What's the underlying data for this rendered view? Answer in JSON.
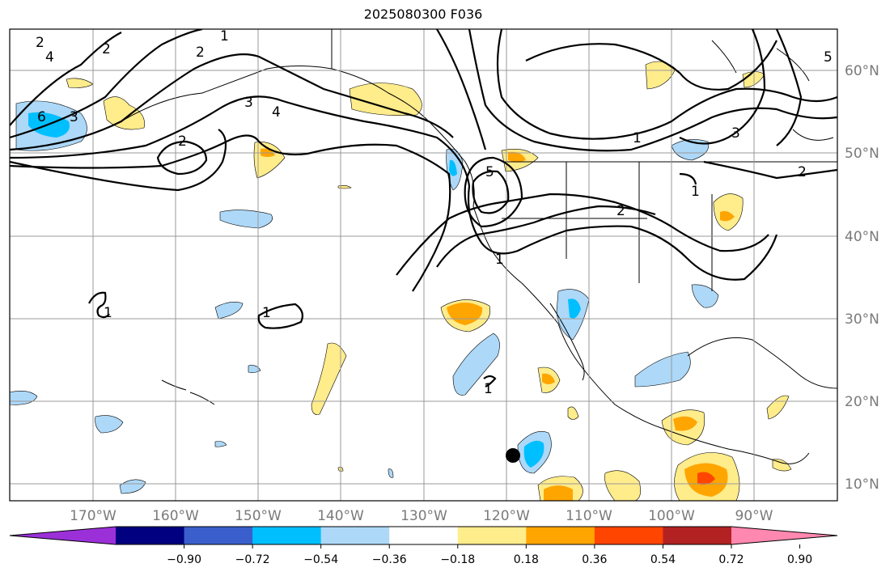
{
  "title": "2025080300 F036",
  "lat_labels": [
    "60°N",
    "50°N",
    "40°N",
    "30°N",
    "20°N",
    "10°N"
  ],
  "lon_labels": [
    "170°W",
    "160°W",
    "150°W",
    "140°W",
    "130°W",
    "120°W",
    "110°W",
    "100°W",
    "90°W"
  ],
  "colorbar": {
    "ticks": [
      "−0.90",
      "−0.72",
      "−0.54",
      "−0.36",
      "−0.18",
      "0.18",
      "0.36",
      "0.54",
      "0.72",
      "0.90"
    ],
    "colors": [
      "#9b30d9",
      "#000080",
      "#3a5fcd",
      "#00bfff",
      "#add8f8",
      "#ffffff",
      "#ffec8b",
      "#ffa500",
      "#ff4500",
      "#b22222",
      "#ff88b0"
    ]
  },
  "contour_labels": [
    "2",
    "4",
    "6",
    "3",
    "1",
    "2",
    "3",
    "4",
    "2",
    "5",
    "1",
    "2",
    "3",
    "2",
    "1",
    "1",
    "2",
    "1",
    "1",
    "1",
    "5"
  ]
}
